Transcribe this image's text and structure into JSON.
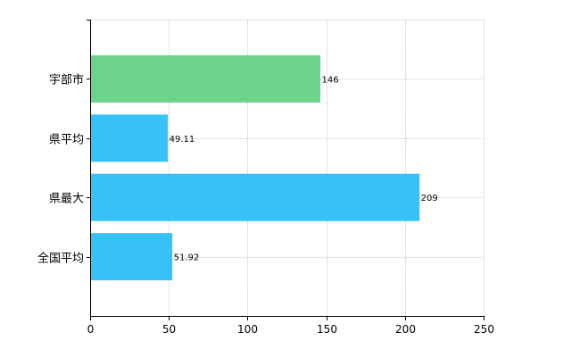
{
  "chart_data": {
    "type": "bar",
    "orientation": "horizontal",
    "categories": [
      "宇部市",
      "県平均",
      "県最大",
      "全国平均"
    ],
    "values": [
      146,
      49.11,
      209,
      51.92
    ],
    "value_labels": [
      "146",
      "49.11",
      "209",
      "51.92"
    ],
    "bar_colors": [
      "#6ed38a",
      "#38c1f4",
      "#38c1f4",
      "#38c1f4"
    ],
    "title": "",
    "xlabel": "",
    "ylabel": "",
    "xlim": [
      0,
      250
    ],
    "x_ticks": [
      0,
      50,
      100,
      150,
      200,
      250
    ],
    "x_tick_labels": [
      "0",
      "50",
      "100",
      "150",
      "200",
      "250"
    ],
    "grid": true,
    "legend": "none"
  }
}
